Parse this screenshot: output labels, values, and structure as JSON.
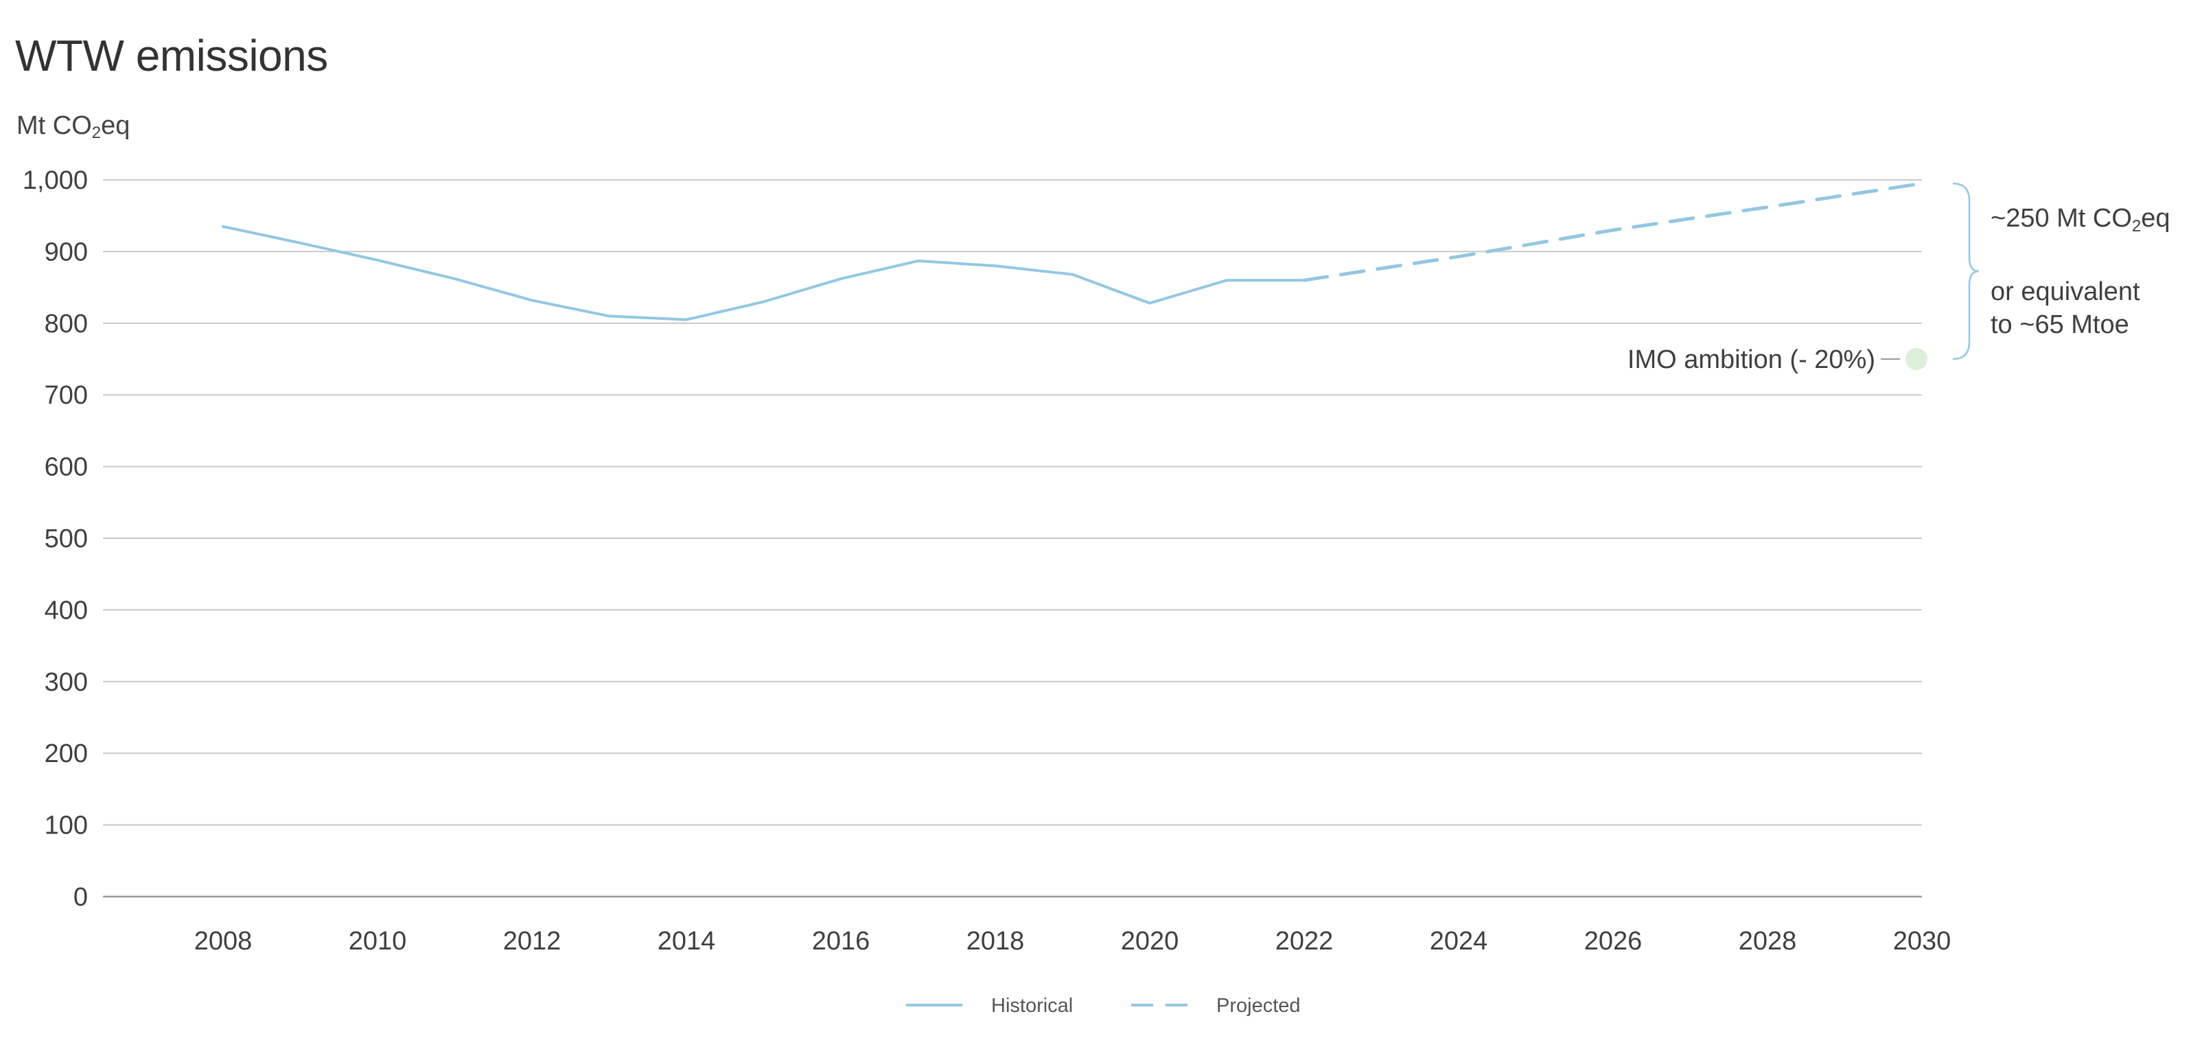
{
  "title": "WTW emissions",
  "unit_label": {
    "main": "Mt CO",
    "sub": "2",
    "tail": "eq"
  },
  "colors": {
    "series": "#93c7e1",
    "grid": "#c9c9c9",
    "axis": "#9a9a9a",
    "target_dot": "#dcefd8",
    "text": "#3f3f3f"
  },
  "chart_data": {
    "type": "line",
    "ylim": [
      0,
      1000
    ],
    "xlim": [
      2007.3,
      2030
    ],
    "y_ticks": [
      0,
      100,
      200,
      300,
      400,
      500,
      600,
      700,
      800,
      900,
      1000
    ],
    "y_tick_labels": [
      "0",
      "100",
      "200",
      "300",
      "400",
      "500",
      "600",
      "700",
      "800",
      "900",
      "1,000"
    ],
    "x_ticks": [
      2008,
      2010,
      2012,
      2014,
      2016,
      2018,
      2020,
      2022,
      2024,
      2026,
      2028,
      2030
    ],
    "x_tick_labels": [
      "2008",
      "2010",
      "2012",
      "2014",
      "2016",
      "2018",
      "2020",
      "2022",
      "2024",
      "2026",
      "2028",
      "2030"
    ],
    "grid": true,
    "legend_position": "bottom-center",
    "series": [
      {
        "name": "Historical",
        "style": "solid",
        "x": [
          2008,
          2009,
          2010,
          2011,
          2012,
          2013,
          2014,
          2015,
          2016,
          2017,
          2018,
          2019,
          2020,
          2021,
          2022
        ],
        "y": [
          935,
          912,
          888,
          862,
          832,
          810,
          805,
          830,
          862,
          887,
          880,
          868,
          828,
          860,
          860
        ]
      },
      {
        "name": "Projected",
        "style": "dashed",
        "x": [
          2022,
          2024,
          2026,
          2028,
          2030
        ],
        "y": [
          860,
          893,
          930,
          962,
          995
        ]
      }
    ],
    "annotations": {
      "target": {
        "label": "IMO ambition (- 20%)",
        "x": 2030,
        "y": 750
      },
      "gap": {
        "line1_main": "~250 Mt CO",
        "line1_sub": "2",
        "line1_tail": "eq",
        "line2": "or equivalent",
        "line3": "to ~65 Mtoe",
        "y_from": 750,
        "y_to": 995
      }
    }
  }
}
